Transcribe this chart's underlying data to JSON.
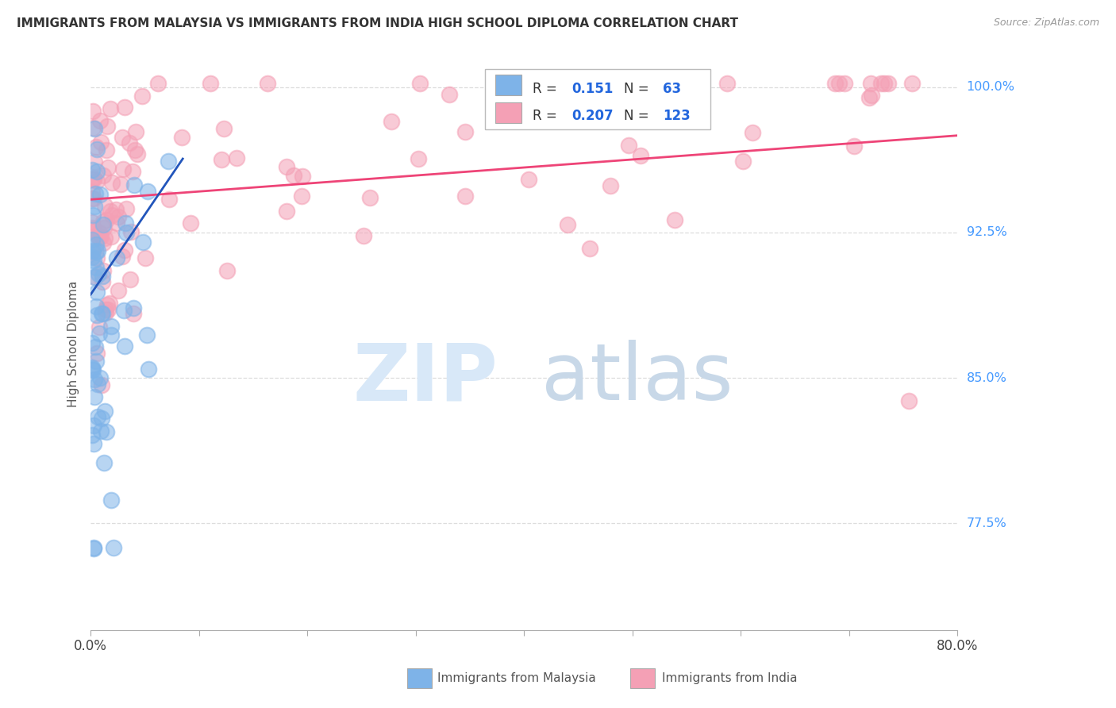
{
  "title": "IMMIGRANTS FROM MALAYSIA VS IMMIGRANTS FROM INDIA HIGH SCHOOL DIPLOMA CORRELATION CHART",
  "source": "Source: ZipAtlas.com",
  "ylabel": "High School Diploma",
  "ytick_labels": [
    "100.0%",
    "92.5%",
    "85.0%",
    "77.5%"
  ],
  "ytick_values": [
    1.0,
    0.925,
    0.85,
    0.775
  ],
  "xmin": 0.0,
  "xmax": 0.8,
  "ymin": 0.72,
  "ymax": 1.015,
  "legend_r_malaysia": "0.151",
  "legend_n_malaysia": "63",
  "legend_r_india": "0.207",
  "legend_n_india": "123",
  "color_malaysia": "#7EB3E8",
  "color_india": "#F4A0B5",
  "color_trendline_malaysia": "#2255BB",
  "color_trendline_india": "#EE4477",
  "watermark_zip": "ZIP",
  "watermark_atlas": "atlas"
}
